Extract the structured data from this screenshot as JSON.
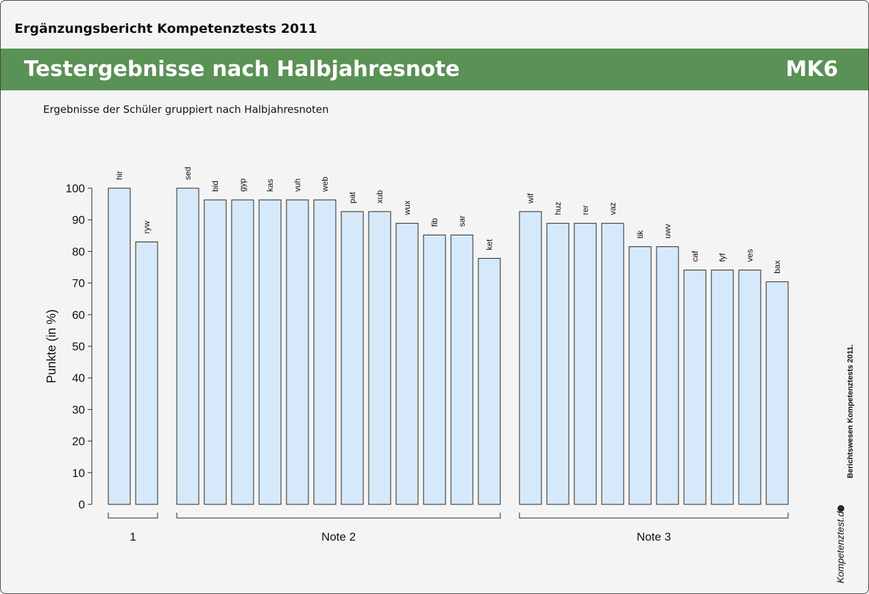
{
  "header": {
    "title": "Ergänzungsbericht Kompetenztests 2011"
  },
  "banner": {
    "title": "Testergebnisse nach Halbjahresnote",
    "code": "MK6"
  },
  "subtitle": "Ergebnisse der Schüler gruppiert nach Halbjahresnoten",
  "side": {
    "text": "Berichtswesen Kompetenztests 2011.",
    "logo": "Kompetenztest.de"
  },
  "chart_data": {
    "type": "bar",
    "ylabel": "Punkte (in %)",
    "color": "#d6e9fb",
    "ylim": [
      0,
      100
    ],
    "yticks": [
      0,
      10,
      20,
      30,
      40,
      50,
      60,
      70,
      80,
      90,
      100
    ],
    "groups": [
      {
        "name": "1",
        "categories": [
          "hir",
          "ryw"
        ],
        "values": [
          100,
          83
        ]
      },
      {
        "name": "Note 2",
        "categories": [
          "sed",
          "bid",
          "gyp",
          "kas",
          "vuh",
          "web",
          "pat",
          "xub",
          "wux",
          "fib",
          "sar",
          "ket"
        ],
        "values": [
          100,
          96.3,
          96.3,
          96.3,
          96.3,
          96.3,
          92.6,
          92.6,
          88.9,
          85.2,
          85.2,
          77.8
        ]
      },
      {
        "name": "Note 3",
        "categories": [
          "wif",
          "huz",
          "rer",
          "vaz",
          "tik",
          "uwv",
          "caf",
          "fyf",
          "ves",
          "bax"
        ],
        "values": [
          92.6,
          88.9,
          88.9,
          88.9,
          81.5,
          81.5,
          74.1,
          74.1,
          74.1,
          70.4
        ]
      }
    ]
  }
}
